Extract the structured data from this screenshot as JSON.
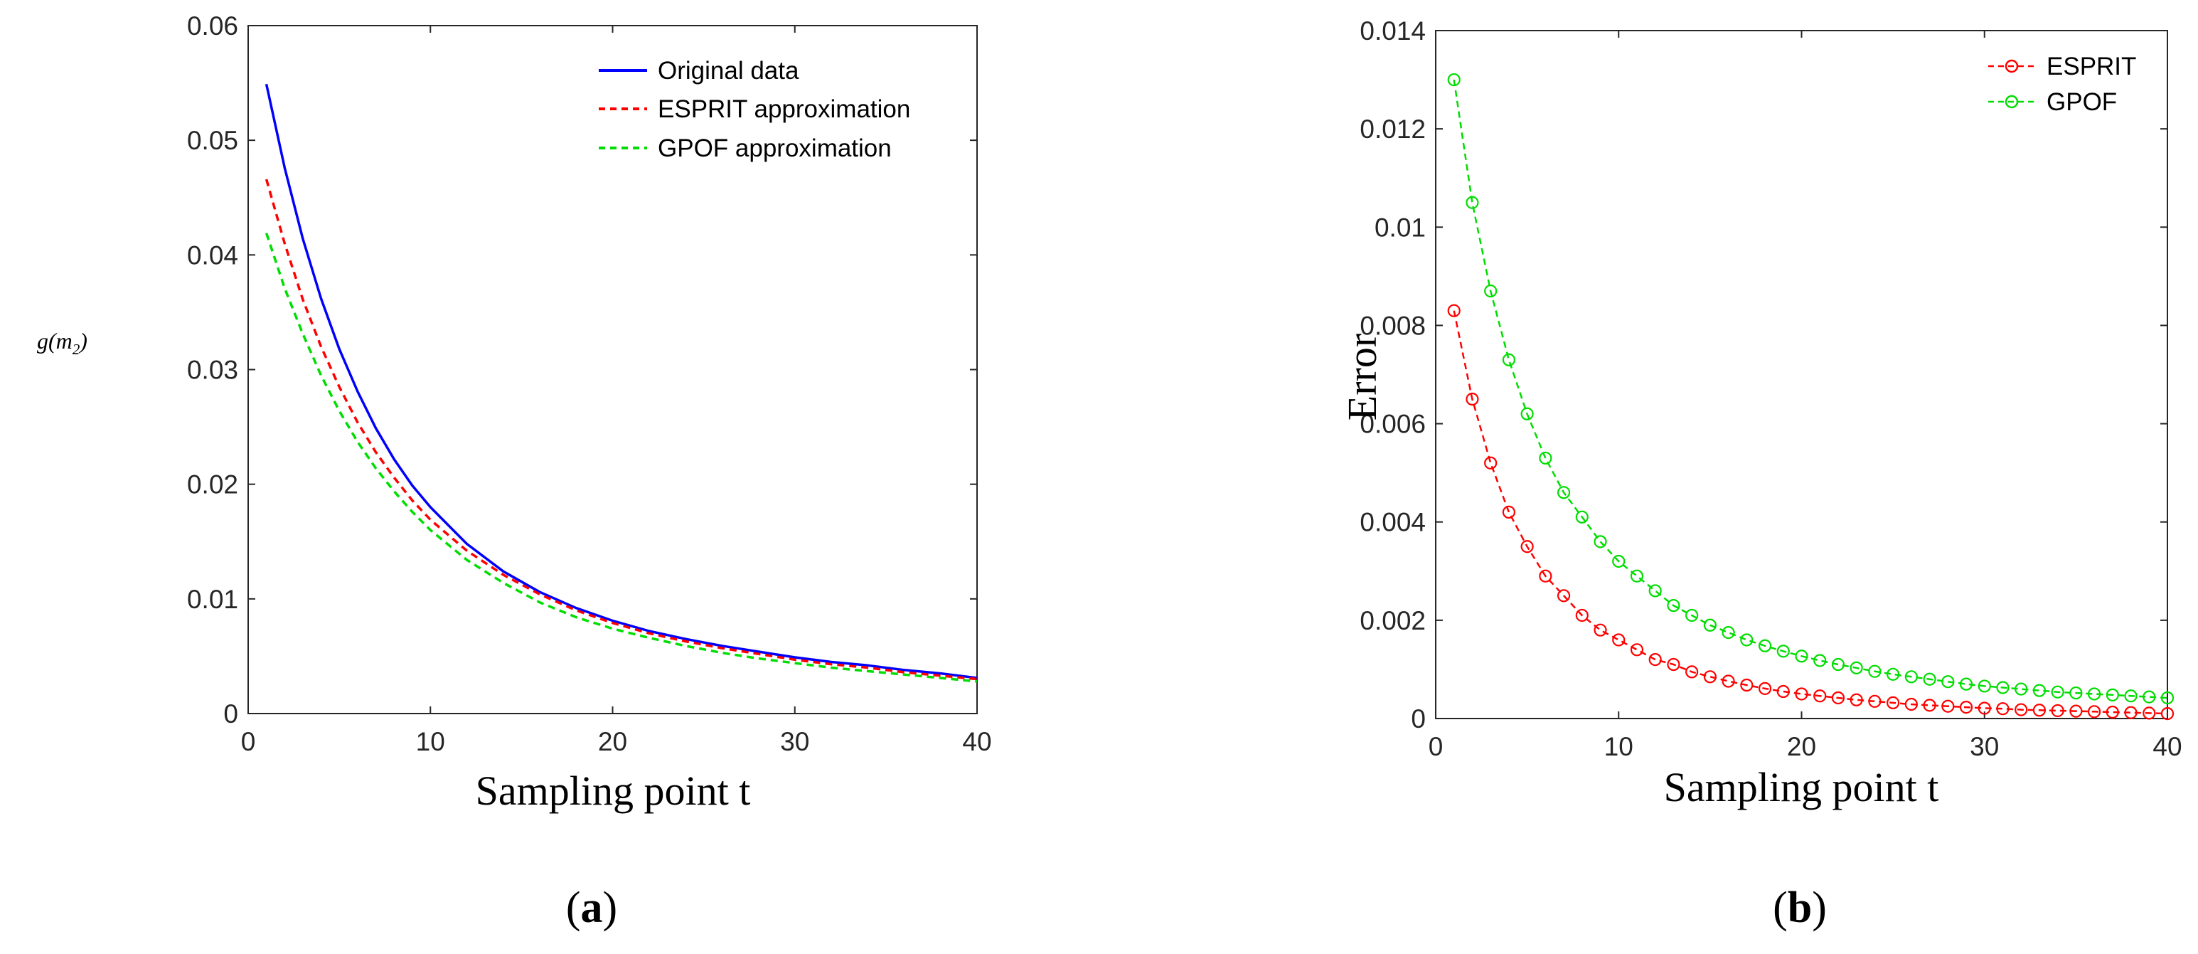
{
  "chart_data": [
    {
      "type": "line",
      "panel_label": {
        "open": "(",
        "letter": "a",
        "close": ")"
      },
      "xlabel": "Sampling point t",
      "ylabel": {
        "main": "g(m",
        "sub": "2",
        "end": ")"
      },
      "xlim": [
        0,
        40
      ],
      "ylim": [
        0,
        0.06
      ],
      "xticks": [
        "0",
        "10",
        "20",
        "30",
        "40"
      ],
      "yticks": [
        "0",
        "0.01",
        "0.02",
        "0.03",
        "0.04",
        "0.05",
        "0.06"
      ],
      "legend_position": "top-right",
      "x": [
        1,
        2,
        3,
        4,
        5,
        6,
        7,
        8,
        9,
        10,
        12,
        14,
        16,
        18,
        20,
        22,
        24,
        26,
        28,
        30,
        32,
        34,
        36,
        38,
        40
      ],
      "series": [
        {
          "name": "Original data",
          "color": "#0000ff",
          "style": "solid",
          "values": [
            0.0549,
            0.0476,
            0.0414,
            0.0362,
            0.0318,
            0.0281,
            0.0249,
            0.0222,
            0.0199,
            0.018,
            0.0148,
            0.0124,
            0.0106,
            0.0092,
            0.0081,
            0.0072,
            0.0065,
            0.0059,
            0.0054,
            0.0049,
            0.0045,
            0.0042,
            0.0038,
            0.0035,
            0.0031
          ]
        },
        {
          "name": "ESPRIT approximation",
          "color": "#ff0000",
          "style": "dashed",
          "values": [
            0.0466,
            0.041,
            0.0361,
            0.032,
            0.0285,
            0.0254,
            0.0228,
            0.0206,
            0.0186,
            0.0169,
            0.0142,
            0.0121,
            0.0104,
            0.009,
            0.0079,
            0.007,
            0.0063,
            0.0057,
            0.0052,
            0.0047,
            0.0043,
            0.004,
            0.0036,
            0.0033,
            0.003
          ]
        },
        {
          "name": "GPOF approximation",
          "color": "#00dd00",
          "style": "dashed",
          "values": [
            0.0419,
            0.0371,
            0.0331,
            0.0295,
            0.0264,
            0.0237,
            0.0214,
            0.0194,
            0.0176,
            0.016,
            0.0134,
            0.0114,
            0.0097,
            0.0084,
            0.0074,
            0.0066,
            0.0059,
            0.0053,
            0.0048,
            0.0044,
            0.004,
            0.0037,
            0.0034,
            0.0031,
            0.0028
          ]
        }
      ]
    },
    {
      "type": "line",
      "panel_label": {
        "open": "(",
        "letter": "b",
        "close": ")"
      },
      "xlabel": "Sampling point t",
      "ylabel": "Error",
      "xlim": [
        0,
        40
      ],
      "ylim": [
        0,
        0.014
      ],
      "xticks": [
        "0",
        "10",
        "20",
        "30",
        "40"
      ],
      "yticks": [
        "0",
        "0.002",
        "0.004",
        "0.006",
        "0.008",
        "0.01",
        "0.012",
        "0.014"
      ],
      "legend_position": "top-right",
      "markers": "circle",
      "x": [
        1,
        2,
        3,
        4,
        5,
        6,
        7,
        8,
        9,
        10,
        11,
        12,
        13,
        14,
        15,
        16,
        17,
        18,
        19,
        20,
        21,
        22,
        23,
        24,
        25,
        26,
        27,
        28,
        29,
        30,
        31,
        32,
        33,
        34,
        35,
        36,
        37,
        38,
        39,
        40
      ],
      "series": [
        {
          "name": "ESPRIT",
          "color": "#ff0000",
          "style": "dashed",
          "values": [
            0.0083,
            0.0065,
            0.0052,
            0.0042,
            0.0035,
            0.0029,
            0.0025,
            0.0021,
            0.0018,
            0.0016,
            0.0014,
            0.0012,
            0.0011,
            0.00095,
            0.00085,
            0.00076,
            0.00068,
            0.00061,
            0.00055,
            0.0005,
            0.00046,
            0.00042,
            0.00038,
            0.00035,
            0.00032,
            0.00029,
            0.00027,
            0.00025,
            0.00023,
            0.00021,
            0.0002,
            0.00018,
            0.00017,
            0.00016,
            0.00015,
            0.00014,
            0.00013,
            0.00012,
            0.00011,
            0.0001
          ]
        },
        {
          "name": "GPOF",
          "color": "#00dd00",
          "style": "dashed",
          "values": [
            0.013,
            0.0105,
            0.0087,
            0.0073,
            0.0062,
            0.0053,
            0.0046,
            0.0041,
            0.0036,
            0.0032,
            0.0029,
            0.0026,
            0.0023,
            0.0021,
            0.0019,
            0.00175,
            0.0016,
            0.00148,
            0.00137,
            0.00127,
            0.00118,
            0.0011,
            0.00103,
            0.00096,
            0.0009,
            0.00085,
            0.0008,
            0.00075,
            0.0007,
            0.00066,
            0.00063,
            0.0006,
            0.00057,
            0.00054,
            0.00052,
            0.0005,
            0.00048,
            0.00046,
            0.00044,
            0.00042
          ]
        }
      ]
    }
  ]
}
